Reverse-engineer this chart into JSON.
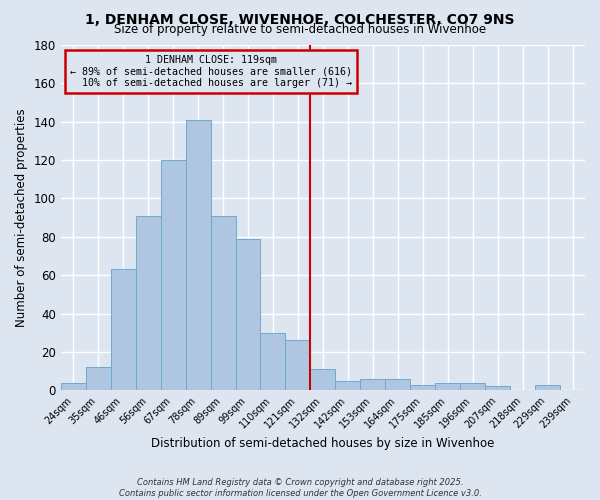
{
  "title": "1, DENHAM CLOSE, WIVENHOE, COLCHESTER, CO7 9NS",
  "subtitle": "Size of property relative to semi-detached houses in Wivenhoe",
  "xlabel": "Distribution of semi-detached houses by size in Wivenhoe",
  "ylabel": "Number of semi-detached properties",
  "categories": [
    "24sqm",
    "35sqm",
    "46sqm",
    "56sqm",
    "67sqm",
    "78sqm",
    "89sqm",
    "99sqm",
    "110sqm",
    "121sqm",
    "132sqm",
    "142sqm",
    "153sqm",
    "164sqm",
    "175sqm",
    "185sqm",
    "196sqm",
    "207sqm",
    "218sqm",
    "229sqm",
    "239sqm"
  ],
  "values": [
    4,
    12,
    63,
    91,
    120,
    141,
    91,
    79,
    30,
    26,
    11,
    5,
    6,
    6,
    3,
    4,
    4,
    2,
    0,
    3,
    0
  ],
  "bar_color": "#aec6e0",
  "bar_edge_color": "#6fa8d0",
  "vline_x_idx": 9,
  "vline_color": "#cc0000",
  "annotation_text": "1 DENHAM CLOSE: 119sqm\n← 89% of semi-detached houses are smaller (616)\n  10% of semi-detached houses are larger (71) →",
  "bg_color": "#dde5f0",
  "grid_color": "#ffffff",
  "ylim": [
    0,
    180
  ],
  "yticks": [
    0,
    20,
    40,
    60,
    80,
    100,
    120,
    140,
    160,
    180
  ],
  "footer1": "Contains HM Land Registry data © Crown copyright and database right 2025.",
  "footer2": "Contains public sector information licensed under the Open Government Licence v3.0."
}
